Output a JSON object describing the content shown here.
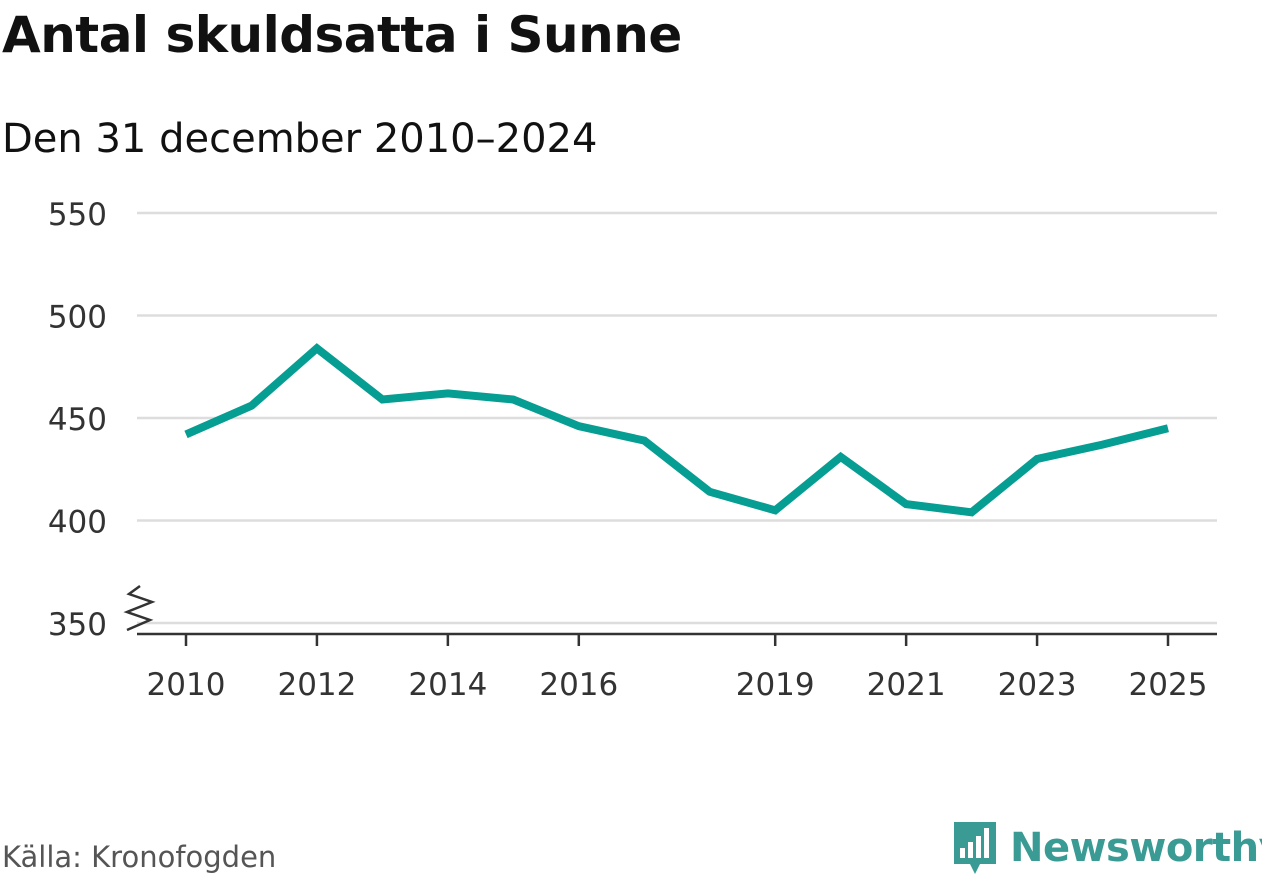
{
  "brand": {
    "name": "Newsworthy",
    "color": "#3a9a94",
    "logo_icon": "bar-chart-speech-bubble-icon"
  },
  "source": "Källa: Kronofogden",
  "chart_data": {
    "type": "line",
    "title": "Antal skuldsatta i Sunne",
    "subtitle": "Den 31 december 2010–2024",
    "xlabel": "",
    "ylabel": "",
    "x_tick_labels": [
      "2010",
      "2012",
      "2014",
      "2016",
      "2019",
      "2021",
      "2023",
      "2025"
    ],
    "y_tick_labels": [
      "350",
      "400",
      "450",
      "500",
      "550"
    ],
    "ylim": [
      350,
      550
    ],
    "xlim": [
      2010,
      2025
    ],
    "y_axis_break": true,
    "grid": true,
    "legend": "none",
    "line_color": "#069d92",
    "series": [
      {
        "x": [
          2010,
          2011,
          2012,
          2013,
          2014,
          2015,
          2016,
          2017,
          2018,
          2019,
          2020,
          2021,
          2022,
          2023,
          2024,
          2025
        ],
        "values": [
          442,
          456,
          484,
          459,
          462,
          459,
          446,
          439,
          414,
          405,
          431,
          408,
          404,
          430,
          437,
          445
        ]
      }
    ]
  }
}
